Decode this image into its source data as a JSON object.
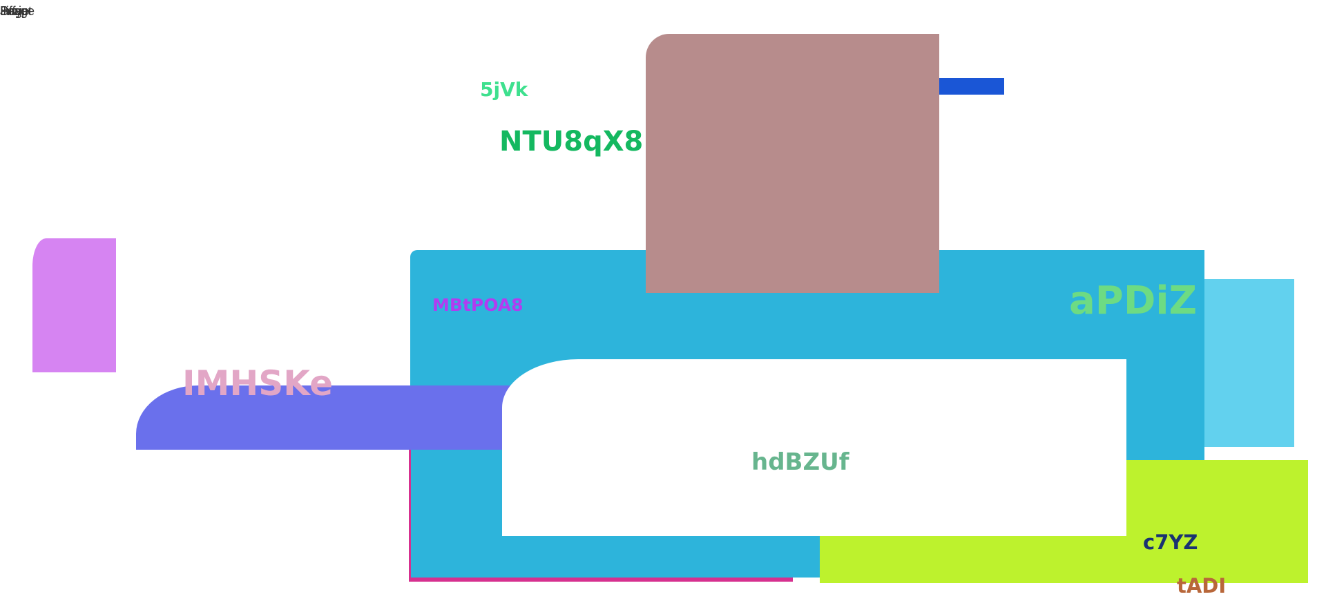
{
  "corner_labels": [
    "Script",
    "Image",
    "Page",
    "Jiffy"
  ],
  "colors": {
    "brown_block": "#b78c8c",
    "blue_bar": "#1a56d6",
    "cyan_frame": "#2db4db",
    "light_cyan_block": "#62d1ee",
    "lime_block": "#bdf22d",
    "indigo_pill": "#6a70ec",
    "violet_block": "#d684f2",
    "magenta_line": "#d6308f",
    "white_inner": "#ffffff"
  },
  "labels": {
    "t_5jvk": "5jVk",
    "t_ntu": "NTU8qX8",
    "t_mbt": "MBtPOA8",
    "t_apdiz": "aPDiZ",
    "t_imhske": "IMHSKe",
    "t_hdbzuf": "hdBZUf",
    "t_c7yz": "c7YZ",
    "t_tadi": "tADI"
  }
}
